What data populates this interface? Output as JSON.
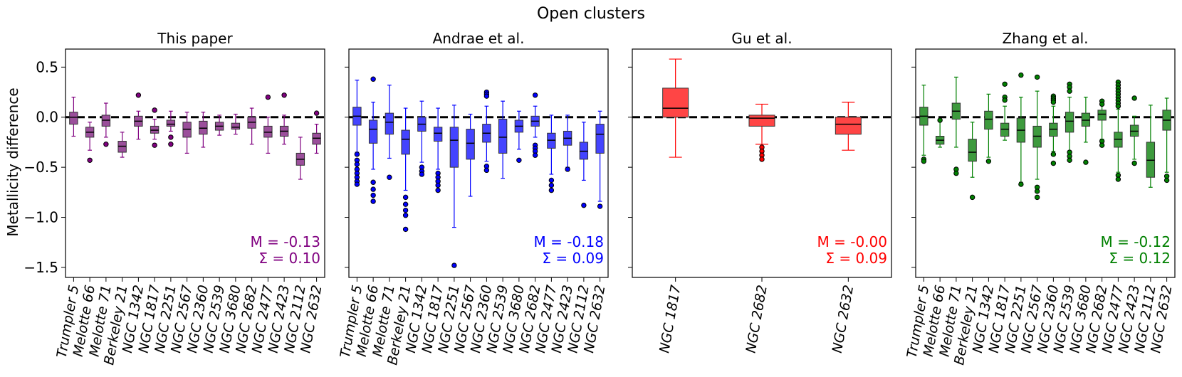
{
  "figure": {
    "suptitle": "Open clusters",
    "ylabel": "Metallicity difference"
  },
  "chart_data": [
    {
      "type": "box",
      "title": "This paper",
      "color": "#800080",
      "fill": "#9b4f9b",
      "ylabel": "Metallicity difference",
      "ylim": [
        -1.6,
        0.68
      ],
      "yticks": [
        0.5,
        0.0,
        -0.5,
        -1.0,
        -1.5
      ],
      "ytick_labels": [
        "0.5",
        "0.0",
        "−0.5",
        "−1.0",
        "−1.5"
      ],
      "reference_line": 0.0,
      "categories": [
        "Trumpler 5",
        "Melotte 66",
        "Melotte 71",
        "Berkeley 21",
        "NGC 1342",
        "NGC 1817",
        "NGC 2251",
        "NGC 2567",
        "NGC 2360",
        "NGC 2539",
        "NGC 3680",
        "NGC 2682",
        "NGC 2477",
        "NGC 2423",
        "NGC 2112",
        "NGC 2632"
      ],
      "boxes": [
        {
          "whislo": -0.19,
          "q1": -0.07,
          "med": 0.0,
          "q3": 0.05,
          "whishi": 0.2,
          "fliers": []
        },
        {
          "whislo": -0.33,
          "q1": -0.2,
          "med": -0.15,
          "q3": -0.1,
          "whishi": -0.05,
          "fliers": [
            -0.43
          ]
        },
        {
          "whislo": -0.2,
          "q1": -0.09,
          "med": -0.03,
          "q3": 0.02,
          "whishi": 0.14,
          "fliers": [
            -0.27
          ]
        },
        {
          "whislo": -0.4,
          "q1": -0.35,
          "med": -0.29,
          "q3": -0.24,
          "whishi": -0.15,
          "fliers": []
        },
        {
          "whislo": -0.22,
          "q1": -0.09,
          "med": -0.04,
          "q3": 0.01,
          "whishi": 0.06,
          "fliers": [
            0.22
          ]
        },
        {
          "whislo": -0.22,
          "q1": -0.16,
          "med": -0.13,
          "q3": -0.09,
          "whishi": -0.02,
          "fliers": [
            -0.28,
            0.07
          ]
        },
        {
          "whislo": -0.14,
          "q1": -0.09,
          "med": -0.07,
          "q3": -0.03,
          "whishi": 0.06,
          "fliers": [
            -0.2,
            -0.27
          ]
        },
        {
          "whislo": -0.36,
          "q1": -0.2,
          "med": -0.12,
          "q3": -0.05,
          "whishi": 0.05,
          "fliers": []
        },
        {
          "whislo": -0.3,
          "q1": -0.17,
          "med": -0.11,
          "q3": -0.04,
          "whishi": 0.05,
          "fliers": []
        },
        {
          "whislo": -0.18,
          "q1": -0.13,
          "med": -0.09,
          "q3": -0.05,
          "whishi": 0.02,
          "fliers": []
        },
        {
          "whislo": -0.17,
          "q1": -0.12,
          "med": -0.1,
          "q3": -0.06,
          "whishi": 0.03,
          "fliers": []
        },
        {
          "whislo": -0.27,
          "q1": -0.11,
          "med": -0.05,
          "q3": 0.0,
          "whishi": 0.09,
          "fliers": []
        },
        {
          "whislo": -0.36,
          "q1": -0.2,
          "med": -0.15,
          "q3": -0.09,
          "whishi": 0.0,
          "fliers": [
            0.2
          ]
        },
        {
          "whislo": -0.27,
          "q1": -0.19,
          "med": -0.14,
          "q3": -0.09,
          "whishi": 0.02,
          "fliers": [
            0.22
          ]
        },
        {
          "whislo": -0.62,
          "q1": -0.48,
          "med": -0.42,
          "q3": -0.36,
          "whishi": -0.2,
          "fliers": []
        },
        {
          "whislo": -0.36,
          "q1": -0.27,
          "med": -0.21,
          "q3": -0.16,
          "whishi": -0.07,
          "fliers": [
            0.04
          ]
        }
      ],
      "stat_m": "M = -0.13",
      "stat_s": "Σ = 0.10"
    },
    {
      "type": "box",
      "title": "Andrae et al.",
      "color": "#0000ff",
      "fill": "#4444ff",
      "ylim": [
        -1.6,
        0.68
      ],
      "reference_line": 0.0,
      "categories": [
        "Trumpler 5",
        "Melotte 66",
        "Melotte 71",
        "Berkeley 21",
        "NGC 1342",
        "NGC 1817",
        "NGC 2251",
        "NGC 2567",
        "NGC 2360",
        "NGC 2539",
        "NGC 3680",
        "NGC 2682",
        "NGC 2477",
        "NGC 2423",
        "NGC 2112",
        "NGC 2632"
      ],
      "boxes": [
        {
          "whislo": -0.35,
          "q1": -0.08,
          "med": 0.01,
          "q3": 0.1,
          "whishi": 0.37,
          "fliers": [
            -0.37,
            -0.43,
            -0.47,
            -0.52,
            -0.56,
            -0.6,
            -0.64,
            -0.67
          ]
        },
        {
          "whislo": -0.52,
          "q1": -0.26,
          "med": -0.12,
          "q3": -0.03,
          "whishi": 0.15,
          "fliers": [
            0.38,
            -0.65,
            -0.72,
            -0.78,
            -0.84
          ]
        },
        {
          "whislo": -0.41,
          "q1": -0.17,
          "med": -0.05,
          "q3": 0.04,
          "whishi": 0.32,
          "fliers": [
            -0.6
          ]
        },
        {
          "whislo": -0.73,
          "q1": -0.37,
          "med": -0.22,
          "q3": -0.13,
          "whishi": 0.09,
          "fliers": [
            -0.8,
            -0.87,
            -0.93,
            -0.98,
            -1.12
          ]
        },
        {
          "whislo": -0.45,
          "q1": -0.14,
          "med": -0.07,
          "q3": 0.0,
          "whishi": 0.16,
          "fliers": [
            -0.5,
            -0.54,
            -0.57
          ]
        },
        {
          "whislo": -0.52,
          "q1": -0.24,
          "med": -0.16,
          "q3": -0.1,
          "whishi": 0.09,
          "fliers": [
            -0.56,
            -0.6,
            -0.64,
            -0.68,
            -0.73
          ]
        },
        {
          "whislo": -1.1,
          "q1": -0.5,
          "med": -0.23,
          "q3": -0.1,
          "whishi": 0.12,
          "fliers": [
            -1.48
          ]
        },
        {
          "whislo": -0.79,
          "q1": -0.42,
          "med": -0.26,
          "q3": -0.12,
          "whishi": 0.03,
          "fliers": []
        },
        {
          "whislo": -0.44,
          "q1": -0.25,
          "med": -0.16,
          "q3": -0.07,
          "whishi": 0.11,
          "fliers": [
            0.25,
            0.23,
            0.21,
            -0.49,
            -0.53
          ]
        },
        {
          "whislo": -0.61,
          "q1": -0.36,
          "med": -0.2,
          "q3": -0.02,
          "whishi": 0.16,
          "fliers": []
        },
        {
          "whislo": -0.32,
          "q1": -0.15,
          "med": -0.09,
          "q3": -0.03,
          "whishi": 0.06,
          "fliers": [
            -0.43
          ]
        },
        {
          "whislo": -0.2,
          "q1": -0.09,
          "med": -0.04,
          "q3": 0.01,
          "whishi": 0.11,
          "fliers": [
            0.22,
            -0.28,
            -0.31,
            -0.34,
            -0.38
          ]
        },
        {
          "whislo": -0.57,
          "q1": -0.31,
          "med": -0.23,
          "q3": -0.16,
          "whishi": 0.02,
          "fliers": [
            -0.63,
            -0.68,
            -0.73
          ]
        },
        {
          "whislo": -0.5,
          "q1": -0.28,
          "med": -0.21,
          "q3": -0.14,
          "whishi": 0.02,
          "fliers": [
            -0.52
          ]
        },
        {
          "whislo": -0.63,
          "q1": -0.42,
          "med": -0.34,
          "q3": -0.25,
          "whishi": -0.05,
          "fliers": [
            -0.88
          ]
        },
        {
          "whislo": -0.84,
          "q1": -0.36,
          "med": -0.17,
          "q3": -0.07,
          "whishi": 0.06,
          "fliers": [
            -0.89
          ]
        }
      ],
      "stat_m": "M = -0.18",
      "stat_s": "Σ = 0.09"
    },
    {
      "type": "box",
      "title": "Gu et al.",
      "color": "#ff0000",
      "fill": "#ff4545",
      "ylim": [
        -1.6,
        0.68
      ],
      "reference_line": 0.0,
      "categories": [
        "NGC 1817",
        "NGC 2682",
        "NGC 2632"
      ],
      "boxes": [
        {
          "whislo": -0.4,
          "q1": 0.0,
          "med": 0.09,
          "q3": 0.29,
          "whishi": 0.58,
          "fliers": []
        },
        {
          "whislo": -0.27,
          "q1": -0.09,
          "med": -0.01,
          "q3": 0.02,
          "whishi": 0.13,
          "fliers": [
            -0.3,
            -0.34,
            -0.38,
            -0.42
          ]
        },
        {
          "whislo": -0.33,
          "q1": -0.17,
          "med": -0.07,
          "q3": 0.0,
          "whishi": 0.15,
          "fliers": []
        }
      ],
      "stat_m": "M = -0.00",
      "stat_s": "Σ = 0.09"
    },
    {
      "type": "box",
      "title": "Zhang et al.",
      "color": "#008000",
      "fill": "#3d9a3d",
      "ylim": [
        -1.6,
        0.68
      ],
      "reference_line": 0.0,
      "categories": [
        "Trumpler 5",
        "Melotte 66",
        "Melotte 71",
        "Berkeley 21",
        "NGC 1342",
        "NGC 1817",
        "NGC 2251",
        "NGC 2567",
        "NGC 2360",
        "NGC 2539",
        "NGC 3680",
        "NGC 2682",
        "NGC 2477",
        "NGC 2423",
        "NGC 2112",
        "NGC 2632"
      ],
      "boxes": [
        {
          "whislo": -0.38,
          "q1": -0.08,
          "med": 0.01,
          "q3": 0.1,
          "whishi": 0.32,
          "fliers": [
            -0.42,
            -0.44
          ]
        },
        {
          "whislo": -0.3,
          "q1": -0.27,
          "med": -0.23,
          "q3": -0.19,
          "whishi": -0.04,
          "fliers": [
            -0.03
          ]
        },
        {
          "whislo": -0.3,
          "q1": -0.02,
          "med": 0.06,
          "q3": 0.14,
          "whishi": 0.4,
          "fliers": [
            -0.52,
            -0.56
          ]
        },
        {
          "whislo": -0.6,
          "q1": -0.44,
          "med": -0.35,
          "q3": -0.22,
          "whishi": -0.05,
          "fliers": [
            -0.8
          ]
        },
        {
          "whislo": -0.4,
          "q1": -0.12,
          "med": -0.02,
          "q3": 0.06,
          "whishi": 0.23,
          "fliers": [
            -0.44
          ]
        },
        {
          "whislo": -0.23,
          "q1": -0.19,
          "med": -0.12,
          "q3": -0.06,
          "whishi": 0.11,
          "fliers": [
            0.33,
            0.2,
            0.17
          ]
        },
        {
          "whislo": -0.65,
          "q1": -0.25,
          "med": -0.13,
          "q3": -0.01,
          "whishi": 0.2,
          "fliers": [
            0.42,
            -0.67
          ]
        },
        {
          "whislo": -0.62,
          "q1": -0.3,
          "med": -0.19,
          "q3": -0.09,
          "whishi": 0.26,
          "fliers": [
            0.4,
            -0.7,
            -0.74,
            -0.8
          ]
        },
        {
          "whislo": -0.34,
          "q1": -0.19,
          "med": -0.12,
          "q3": -0.06,
          "whishi": 0.11,
          "fliers": [
            0.21,
            0.19,
            0.17,
            0.15,
            -0.37,
            -0.46
          ]
        },
        {
          "whislo": -0.35,
          "q1": -0.15,
          "med": -0.04,
          "q3": 0.05,
          "whishi": 0.2,
          "fliers": [
            0.33,
            0.3,
            0.26,
            -0.35,
            -0.39,
            -0.43
          ]
        },
        {
          "whislo": -0.25,
          "q1": -0.09,
          "med": -0.03,
          "q3": 0.04,
          "whishi": 0.2,
          "fliers": [
            -0.45
          ]
        },
        {
          "whislo": -0.22,
          "q1": -0.03,
          "med": 0.03,
          "q3": 0.07,
          "whishi": 0.15,
          "fliers": [
            0.16,
            0.13,
            -0.24,
            -0.28
          ]
        },
        {
          "whislo": -0.55,
          "q1": -0.3,
          "med": -0.22,
          "q3": -0.15,
          "whishi": 0.08,
          "fliers": [
            0.35,
            0.32,
            0.29,
            0.26,
            0.23,
            0.2,
            0.17,
            0.14,
            0.11,
            -0.58,
            -0.62
          ]
        },
        {
          "whislo": -0.42,
          "q1": -0.19,
          "med": -0.14,
          "q3": -0.08,
          "whishi": 0.01,
          "fliers": [
            0.19,
            -0.46
          ]
        },
        {
          "whislo": -0.7,
          "q1": -0.6,
          "med": -0.43,
          "q3": -0.25,
          "whishi": 0.12,
          "fliers": []
        },
        {
          "whislo": -0.55,
          "q1": -0.13,
          "med": -0.03,
          "q3": 0.07,
          "whishi": 0.19,
          "fliers": [
            -0.59,
            -0.63
          ]
        }
      ],
      "stat_m": "M = -0.12",
      "stat_s": "Σ = 0.12"
    }
  ]
}
